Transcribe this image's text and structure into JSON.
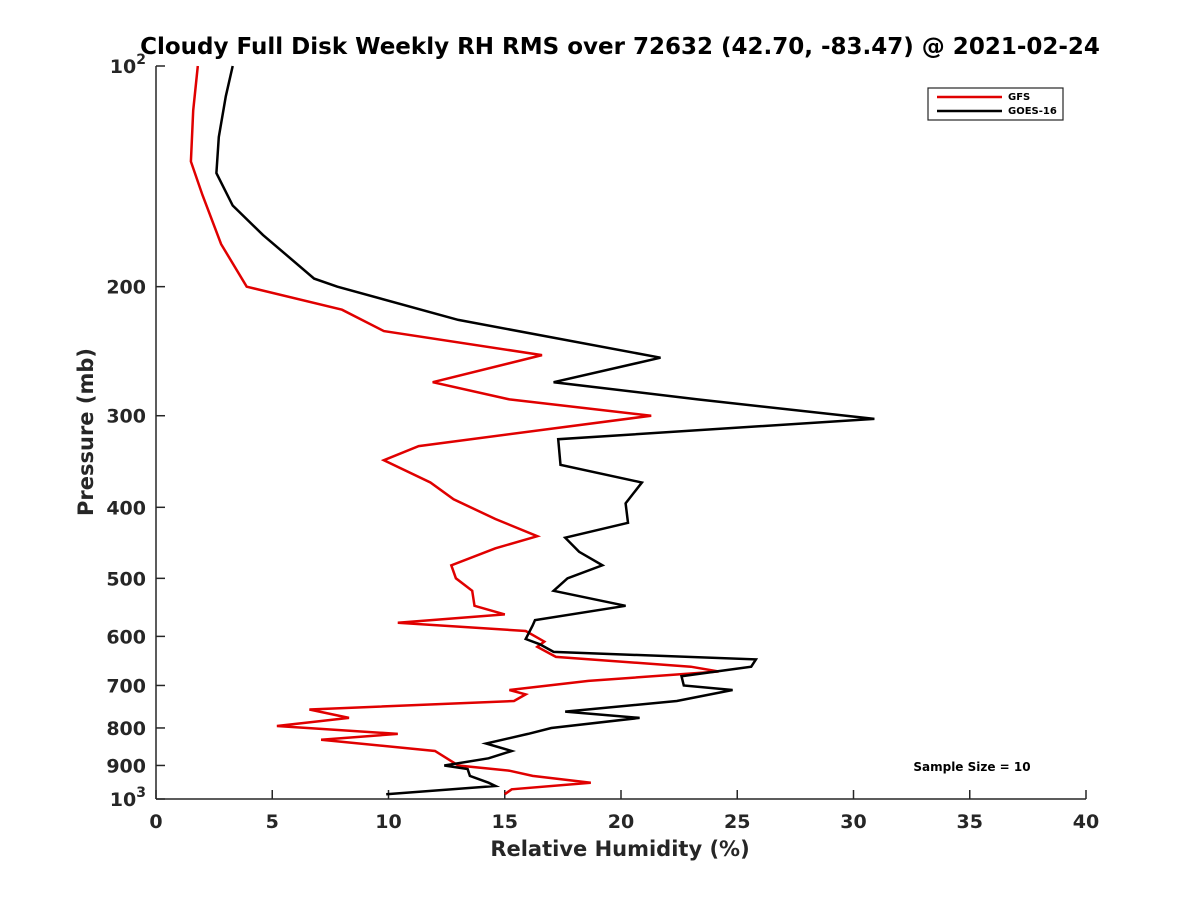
{
  "chart_data": {
    "type": "line",
    "title": "Cloudy Full Disk Weekly RH RMS over 72632 (42.70, -83.47) @ 2021-02-24",
    "xlabel": "Relative Humidity (%)",
    "ylabel": "Pressure (mb)",
    "xlim": [
      0,
      40
    ],
    "ylim": [
      100,
      1000
    ],
    "y_scale": "log",
    "y_reversed": true,
    "x_ticks": [
      "0",
      "5",
      "10",
      "15",
      "20",
      "25",
      "30",
      "35",
      "40"
    ],
    "y_ticks": [
      {
        "value": 100,
        "base": "10",
        "exp": "2"
      },
      {
        "value": 200,
        "label": "200"
      },
      {
        "value": 300,
        "label": "300"
      },
      {
        "value": 400,
        "label": "400"
      },
      {
        "value": 500,
        "label": "500"
      },
      {
        "value": 600,
        "label": "600"
      },
      {
        "value": 700,
        "label": "700"
      },
      {
        "value": 800,
        "label": "800"
      },
      {
        "value": 900,
        "label": "900"
      },
      {
        "value": 1000,
        "base": "10",
        "exp": "3"
      }
    ],
    "legend_position": "top-right",
    "grid": false,
    "annotation": "Sample Size = 10",
    "series": [
      {
        "name": "GFS",
        "color": "#e00000",
        "points": [
          [
            1.8,
            100
          ],
          [
            1.6,
            115
          ],
          [
            1.5,
            135
          ],
          [
            2.0,
            150
          ],
          [
            2.8,
            175
          ],
          [
            3.9,
            200
          ],
          [
            8.0,
            215
          ],
          [
            9.8,
            230
          ],
          [
            16.6,
            248
          ],
          [
            11.9,
            270
          ],
          [
            15.2,
            285
          ],
          [
            21.3,
            300
          ],
          [
            11.3,
            330
          ],
          [
            9.8,
            345
          ],
          [
            11.8,
            370
          ],
          [
            12.8,
            390
          ],
          [
            14.6,
            415
          ],
          [
            16.4,
            438
          ],
          [
            14.6,
            455
          ],
          [
            12.7,
            480
          ],
          [
            12.9,
            500
          ],
          [
            13.6,
            520
          ],
          [
            13.7,
            545
          ],
          [
            15.0,
            560
          ],
          [
            10.4,
            575
          ],
          [
            15.9,
            590
          ],
          [
            16.7,
            610
          ],
          [
            16.4,
            620
          ],
          [
            17.2,
            640
          ],
          [
            23.0,
            660
          ],
          [
            24.2,
            670
          ],
          [
            18.6,
            690
          ],
          [
            15.2,
            710
          ],
          [
            15.9,
            720
          ],
          [
            15.4,
            735
          ],
          [
            6.6,
            755
          ],
          [
            8.3,
            775
          ],
          [
            5.2,
            795
          ],
          [
            10.4,
            815
          ],
          [
            7.1,
            830
          ],
          [
            12.0,
            860
          ],
          [
            13.0,
            900
          ],
          [
            15.2,
            915
          ],
          [
            16.2,
            930
          ],
          [
            18.7,
            950
          ],
          [
            15.3,
            970
          ],
          [
            15.0,
            985
          ]
        ]
      },
      {
        "name": "GOES-16",
        "color": "#000000",
        "points": [
          [
            3.3,
            100
          ],
          [
            3.0,
            110
          ],
          [
            2.7,
            125
          ],
          [
            2.6,
            140
          ],
          [
            3.3,
            155
          ],
          [
            4.6,
            170
          ],
          [
            6.8,
            195
          ],
          [
            7.8,
            200
          ],
          [
            13.0,
            222
          ],
          [
            21.7,
            250
          ],
          [
            17.1,
            270
          ],
          [
            23.3,
            285
          ],
          [
            30.9,
            303
          ],
          [
            17.3,
            323
          ],
          [
            17.4,
            350
          ],
          [
            20.9,
            370
          ],
          [
            20.2,
            395
          ],
          [
            20.3,
            420
          ],
          [
            17.6,
            440
          ],
          [
            18.2,
            460
          ],
          [
            19.2,
            480
          ],
          [
            17.7,
            500
          ],
          [
            17.1,
            520
          ],
          [
            20.2,
            545
          ],
          [
            16.3,
            570
          ],
          [
            16.2,
            580
          ],
          [
            15.9,
            605
          ],
          [
            16.5,
            615
          ],
          [
            17.1,
            630
          ],
          [
            25.8,
            645
          ],
          [
            25.6,
            660
          ],
          [
            22.6,
            680
          ],
          [
            22.7,
            700
          ],
          [
            24.8,
            710
          ],
          [
            22.4,
            735
          ],
          [
            17.6,
            760
          ],
          [
            20.8,
            775
          ],
          [
            17.0,
            800
          ],
          [
            16.0,
            815
          ],
          [
            14.2,
            840
          ],
          [
            15.3,
            860
          ],
          [
            14.3,
            880
          ],
          [
            12.4,
            900
          ],
          [
            13.4,
            910
          ],
          [
            13.5,
            930
          ],
          [
            14.3,
            950
          ],
          [
            14.6,
            960
          ],
          [
            9.9,
            985
          ]
        ]
      }
    ]
  }
}
